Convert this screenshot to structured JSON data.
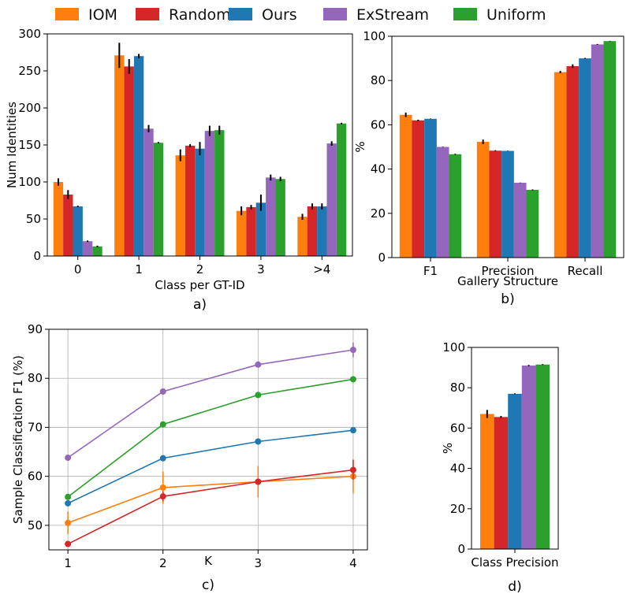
{
  "colors": {
    "IOM": "#ff7f0e",
    "Random": "#d62728",
    "Ours": "#1f77b4",
    "ExStream": "#9467bd",
    "Uniform": "#2ca02c"
  },
  "legend": [
    "IOM",
    "Random",
    "Ours",
    "ExStream",
    "Uniform"
  ],
  "chart_data": [
    {
      "panel": "a)",
      "type": "bar",
      "xlabel": "Class per GT-ID",
      "ylabel": "Num Identities",
      "ylim": [
        0,
        300
      ],
      "yticks": [
        0,
        50,
        100,
        150,
        200,
        250,
        300
      ],
      "categories": [
        "0",
        "1",
        "2",
        "3",
        ">4"
      ],
      "series": [
        {
          "name": "IOM",
          "values": [
            100,
            271,
            136,
            61,
            53
          ],
          "err": [
            5,
            17,
            8,
            6,
            4
          ]
        },
        {
          "name": "Random",
          "values": [
            83,
            256,
            149,
            66,
            67
          ],
          "err": [
            6,
            10,
            2,
            3,
            4
          ]
        },
        {
          "name": "Ours",
          "values": [
            67,
            270,
            145,
            72,
            67
          ],
          "err": [
            1,
            3,
            9,
            11,
            4
          ]
        },
        {
          "name": "ExStream",
          "values": [
            20,
            172,
            169,
            106,
            152
          ],
          "err": [
            1,
            5,
            7,
            4,
            3
          ]
        },
        {
          "name": "Uniform",
          "values": [
            13,
            153,
            170,
            104,
            179
          ],
          "err": [
            1,
            1,
            6,
            3,
            1
          ]
        }
      ]
    },
    {
      "panel": "b)",
      "type": "bar",
      "xlabel": "Gallery Structure",
      "ylabel": "%",
      "ylim": [
        0,
        100
      ],
      "yticks": [
        0,
        20,
        40,
        60,
        80,
        100
      ],
      "categories": [
        "F1",
        "Precision",
        "Recall"
      ],
      "series": [
        {
          "name": "IOM",
          "values": [
            64.5,
            52.3,
            83.8
          ],
          "err": [
            1,
            1,
            0.5
          ]
        },
        {
          "name": "Random",
          "values": [
            62,
            48.3,
            86.5
          ],
          "err": [
            0.3,
            0.2,
            0.8
          ]
        },
        {
          "name": "Ours",
          "values": [
            62.7,
            48.2,
            90
          ],
          "err": [
            0.1,
            0.1,
            0.2
          ]
        },
        {
          "name": "ExStream",
          "values": [
            50,
            33.8,
            96.3
          ],
          "err": [
            0.1,
            0.1,
            0.2
          ]
        },
        {
          "name": "Uniform",
          "values": [
            46.7,
            30.6,
            97.8
          ],
          "err": [
            0.2,
            0.2,
            0.1
          ]
        }
      ]
    },
    {
      "panel": "c)",
      "type": "line",
      "xlabel": "K",
      "ylabel": "Sample Classification F1 (%)",
      "xlim": [
        0.8,
        4.15
      ],
      "ylim": [
        45,
        90
      ],
      "xticks": [
        1,
        2,
        3,
        4
      ],
      "yticks": [
        50,
        60,
        70,
        80,
        90
      ],
      "grid": true,
      "x": [
        1,
        2,
        3,
        4
      ],
      "series": [
        {
          "name": "IOM",
          "values": [
            50.5,
            57.7,
            58.9,
            60
          ],
          "err": [
            2.3,
            3.3,
            3.2,
            3.5
          ]
        },
        {
          "name": "Random",
          "values": [
            46.2,
            55.9,
            58.9,
            61.3
          ],
          "err": [
            0.5,
            1,
            0.5,
            2
          ]
        },
        {
          "name": "Ours",
          "values": [
            54.5,
            63.7,
            67.1,
            69.4
          ],
          "err": [
            0.3,
            0.3,
            0.3,
            0.3
          ]
        },
        {
          "name": "ExStream",
          "values": [
            63.8,
            77.3,
            82.8,
            85.8
          ],
          "err": [
            0.3,
            0.3,
            0.3,
            1.5
          ]
        },
        {
          "name": "Uniform",
          "values": [
            55.8,
            70.6,
            76.6,
            79.8
          ],
          "err": [
            0.3,
            0.3,
            0.3,
            0.3
          ]
        }
      ]
    },
    {
      "panel": "d)",
      "type": "bar",
      "xlabel": "Class Precision",
      "ylabel": "%",
      "ylim": [
        0,
        100
      ],
      "yticks": [
        0,
        20,
        40,
        60,
        80,
        100
      ],
      "categories": [
        ""
      ],
      "series": [
        {
          "name": "IOM",
          "values": [
            67
          ],
          "err": [
            2
          ]
        },
        {
          "name": "Random",
          "values": [
            65.5
          ],
          "err": [
            0.5
          ]
        },
        {
          "name": "Ours",
          "values": [
            77
          ],
          "err": [
            0.2
          ]
        },
        {
          "name": "ExStream",
          "values": [
            91
          ],
          "err": [
            0.3
          ]
        },
        {
          "name": "Uniform",
          "values": [
            91.5
          ],
          "err": [
            0.2
          ]
        }
      ]
    }
  ]
}
